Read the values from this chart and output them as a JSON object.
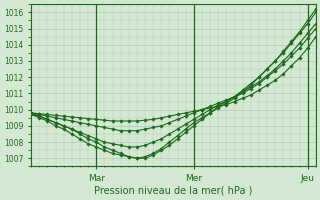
{
  "title": "",
  "xlabel": "Pression niveau de la mer( hPa )",
  "ylabel": "",
  "bg_color": "#d4e8d4",
  "grid_color": "#b0ccb0",
  "line_color": "#1a6b1a",
  "marker_color": "#1a6b1a",
  "ylim": [
    1006.5,
    1016.5
  ],
  "xlim": [
    0,
    35
  ],
  "day_labels": [
    "Mar",
    "Mer",
    "Jeu"
  ],
  "day_positions": [
    8,
    20,
    34
  ],
  "series": [
    [
      1009.7,
      1009.6,
      1009.4,
      1009.2,
      1009.0,
      1008.8,
      1008.5,
      1008.2,
      1008.0,
      1007.7,
      1007.5,
      1007.3,
      1007.1,
      1007.0,
      1007.0,
      1007.2,
      1007.5,
      1007.8,
      1008.2,
      1008.6,
      1009.0,
      1009.4,
      1009.8,
      1010.2,
      1010.5,
      1010.8,
      1011.2,
      1011.6,
      1012.0,
      1012.5,
      1013.0,
      1013.6,
      1014.2,
      1014.8,
      1015.5,
      1016.2
    ],
    [
      1009.7,
      1009.5,
      1009.3,
      1009.0,
      1008.8,
      1008.5,
      1008.2,
      1007.9,
      1007.7,
      1007.5,
      1007.3,
      1007.2,
      1007.1,
      1007.0,
      1007.1,
      1007.3,
      1007.6,
      1008.0,
      1008.4,
      1008.8,
      1009.2,
      1009.5,
      1009.8,
      1010.1,
      1010.4,
      1010.7,
      1011.1,
      1011.5,
      1012.0,
      1012.5,
      1013.0,
      1013.5,
      1014.1,
      1014.7,
      1015.3,
      1016.0
    ],
    [
      1009.8,
      1009.6,
      1009.4,
      1009.2,
      1009.0,
      1008.8,
      1008.6,
      1008.4,
      1008.2,
      1008.0,
      1007.9,
      1007.8,
      1007.7,
      1007.7,
      1007.8,
      1008.0,
      1008.2,
      1008.5,
      1008.8,
      1009.1,
      1009.4,
      1009.7,
      1010.0,
      1010.3,
      1010.5,
      1010.8,
      1011.1,
      1011.4,
      1011.7,
      1012.1,
      1012.5,
      1013.0,
      1013.5,
      1014.1,
      1014.7,
      1015.3
    ],
    [
      1009.8,
      1009.7,
      1009.6,
      1009.5,
      1009.4,
      1009.3,
      1009.2,
      1009.1,
      1009.0,
      1008.9,
      1008.8,
      1008.7,
      1008.7,
      1008.7,
      1008.8,
      1008.9,
      1009.0,
      1009.2,
      1009.4,
      1009.6,
      1009.8,
      1010.0,
      1010.2,
      1010.4,
      1010.6,
      1010.8,
      1011.0,
      1011.3,
      1011.6,
      1012.0,
      1012.4,
      1012.8,
      1013.3,
      1013.8,
      1014.4,
      1015.0
    ],
    [
      1009.8,
      1009.75,
      1009.7,
      1009.65,
      1009.6,
      1009.55,
      1009.5,
      1009.45,
      1009.4,
      1009.35,
      1009.3,
      1009.3,
      1009.3,
      1009.3,
      1009.35,
      1009.4,
      1009.5,
      1009.6,
      1009.7,
      1009.8,
      1009.9,
      1010.0,
      1010.1,
      1010.2,
      1010.3,
      1010.5,
      1010.7,
      1010.9,
      1011.2,
      1011.5,
      1011.8,
      1012.2,
      1012.7,
      1013.2,
      1013.8,
      1014.5
    ]
  ]
}
